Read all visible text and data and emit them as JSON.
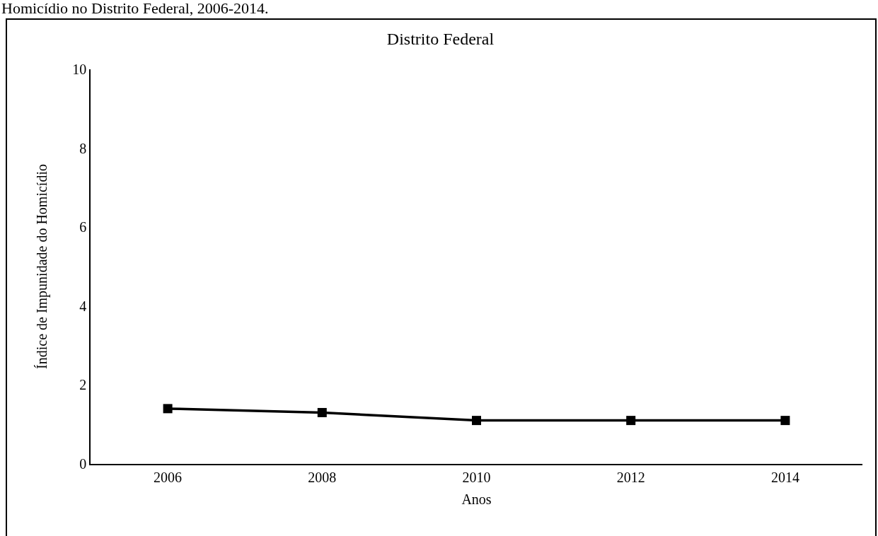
{
  "chart_data": {
    "type": "line",
    "title": "Distrito Federal",
    "xlabel": "Anos",
    "ylabel": "Índice de Impunidade do Homicídio",
    "annotations": [
      "Homicídio no Distrito Federal, 2006-2014."
    ],
    "categories": [
      "2006",
      "2008",
      "2010",
      "2012",
      "2014"
    ],
    "series": [
      {
        "color": "#000000",
        "values": [
          1.4,
          1.3,
          1.1,
          1.1,
          1.1
        ]
      }
    ],
    "ylim": [
      0,
      10
    ],
    "yticks": [
      0,
      2,
      4,
      6,
      8,
      10
    ],
    "grid": false,
    "marker": "square",
    "line_style": "solid"
  }
}
